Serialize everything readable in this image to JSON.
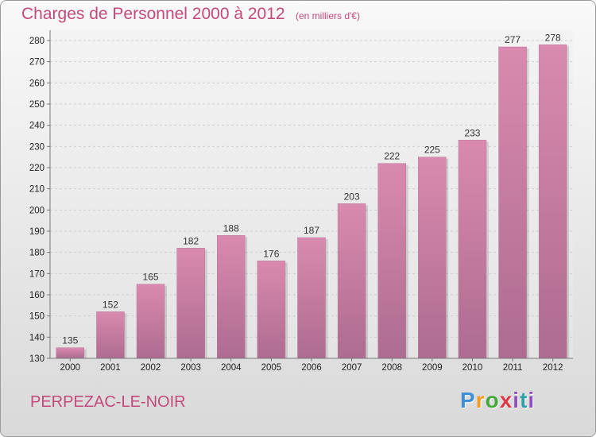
{
  "chart_data": {
    "type": "bar",
    "title": "Charges de Personnel 2000 à 2012",
    "subtitle": "(en milliers d'€)",
    "categories": [
      "2000",
      "2001",
      "2002",
      "2003",
      "2004",
      "2005",
      "2006",
      "2007",
      "2008",
      "2009",
      "2010",
      "2011",
      "2012"
    ],
    "values": [
      135,
      152,
      165,
      182,
      188,
      176,
      187,
      203,
      222,
      225,
      233,
      277,
      278
    ],
    "ylim": [
      130,
      280
    ],
    "yticks": [
      130,
      140,
      150,
      160,
      170,
      180,
      190,
      200,
      210,
      220,
      230,
      240,
      250,
      260,
      270,
      280
    ],
    "grid": true,
    "bar_color": "#d98aae",
    "bar_color_dark": "#ad6c90"
  },
  "footer": {
    "location": "PERPEZAC-LE-NOIR",
    "logo": {
      "p": "P",
      "r": "r",
      "o": "o",
      "x": "x",
      "i1": "i",
      "t": "t",
      "i2": "i"
    }
  }
}
